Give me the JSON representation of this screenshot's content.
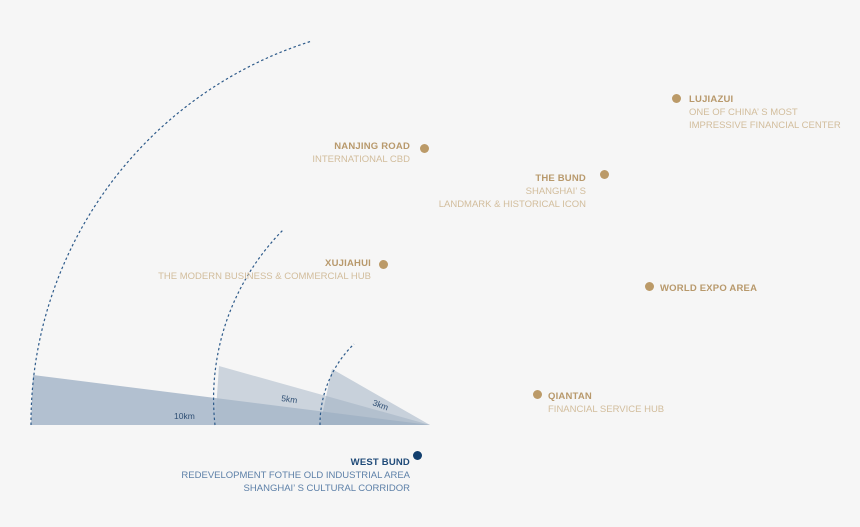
{
  "colors": {
    "gold": "#bb9a68",
    "navy": "#123f6e",
    "wedge": "#b0bfcf"
  },
  "rings": [
    {
      "label": "10km"
    },
    {
      "label": "5km"
    },
    {
      "label": "3km"
    }
  ],
  "places": {
    "lujiazui": {
      "title": "LUJIAZUI",
      "lines": [
        "ONE OF CHINA’ S MOST",
        "IMPRESSIVE FINANCIAL CENTER"
      ]
    },
    "nanjing_road": {
      "title": "NANJING ROAD",
      "lines": [
        "INTERNATIONAL CBD"
      ]
    },
    "the_bund": {
      "title": "THE BUND",
      "lines": [
        "SHANGHAI’ S",
        "LANDMARK & HISTORICAL ICON"
      ]
    },
    "xujiahui": {
      "title": "XUJIAHUI",
      "lines": [
        "THE MODERN BUSINESS & COMMERCIAL HUB"
      ]
    },
    "world_expo": {
      "title": "WORLD EXPO AREA"
    },
    "qiantan": {
      "title": "QIANTAN",
      "lines": [
        "FINANCIAL SERVICE HUB"
      ]
    },
    "west_bund": {
      "title": "WEST BUND",
      "lines": [
        "REDEVELOPMENT FOTHE OLD INDUSTRIAL AREA",
        "SHANGHAI’ S CULTURAL CORRIDOR"
      ]
    }
  }
}
